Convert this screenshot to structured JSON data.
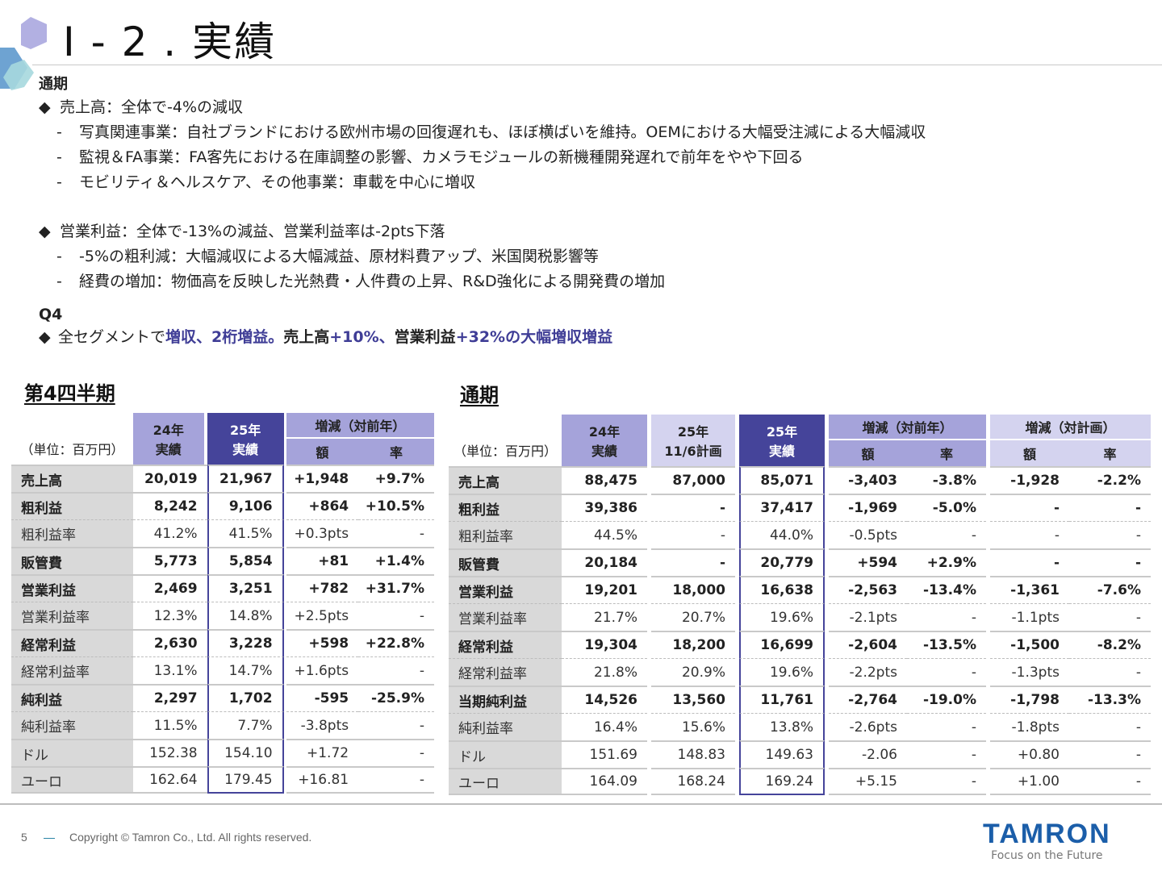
{
  "slide": {
    "title": "Ⅰ - 2 . 実績",
    "page_number": "5",
    "copyright": "Copyright © Tamron Co., Ltd. All rights reserved.",
    "logo_brand": "TAMRON",
    "logo_tagline": "Focus on the Future",
    "colors": {
      "accent": "#3f3d96",
      "header_dark": "#45449a",
      "header_mid": "#a5a3da",
      "header_light": "#d4d3ef",
      "brand_blue": "#1b5ea9"
    }
  },
  "summary": {
    "fullyear_heading": "通期",
    "sales": {
      "bullet": "◆",
      "text": "売上高：全体で-4%の減収",
      "items": [
        "写真関連事業：自社ブランドにおける欧州市場の回復遅れも、ほぼ横ばいを維持。OEMにおける大幅受注減による大幅減収",
        "監視＆FA事業：FA客先における在庫調整の影響、カメラモジュールの新機種開発遅れで前年をやや下回る",
        "モビリティ＆ヘルスケア、その他事業：車載を中心に増収"
      ]
    },
    "op_income": {
      "bullet": "◆",
      "text": "営業利益：全体で-13%の減益、営業利益率は-2pts下落",
      "items": [
        "-5%の粗利減：大幅減収による大幅減益、原材料費アップ、米国関税影響等",
        "経費の増加：物価高を反映した光熱費・人件費の上昇、R&D強化による開発費の増加"
      ]
    },
    "q4_heading": "Q4",
    "q4": {
      "bullet": "◆",
      "p1": "全セグメントで",
      "p2": "増収、2桁増益。",
      "p3": "売上高",
      "p4": "+10%、",
      "p5": "営業利益",
      "p6": "+32%の大幅増収増益"
    },
    "dash": "-"
  },
  "q4_table": {
    "title": "第4四半期",
    "unit": "（単位：百万円）",
    "headers": {
      "y24": "24年",
      "y24b": "実績",
      "y25": "25年",
      "y25b": "実績",
      "diff": "増減（対前年）",
      "amt": "額",
      "rate": "率"
    },
    "rows": [
      {
        "label": "売上高",
        "y24": "20,019",
        "y25": "21,967",
        "amt": "+1,948",
        "rate": "+9.7%"
      },
      {
        "label": "粗利益",
        "y24": "8,242",
        "y25": "9,106",
        "amt": "+864",
        "rate": "+10.5%"
      },
      {
        "label": "粗利益率",
        "y24": "41.2%",
        "y25": "41.5%",
        "amt": "+0.3pts",
        "rate": "-"
      },
      {
        "label": "販管費",
        "y24": "5,773",
        "y25": "5,854",
        "amt": "+81",
        "rate": "+1.4%"
      },
      {
        "label": "営業利益",
        "y24": "2,469",
        "y25": "3,251",
        "amt": "+782",
        "rate": "+31.7%"
      },
      {
        "label": "営業利益率",
        "y24": "12.3%",
        "y25": "14.8%",
        "amt": "+2.5pts",
        "rate": "-"
      },
      {
        "label": "経常利益",
        "y24": "2,630",
        "y25": "3,228",
        "amt": "+598",
        "rate": "+22.8%"
      },
      {
        "label": "経常利益率",
        "y24": "13.1%",
        "y25": "14.7%",
        "amt": "+1.6pts",
        "rate": "-"
      },
      {
        "label": "純利益",
        "y24": "2,297",
        "y25": "1,702",
        "amt": "-595",
        "rate": "-25.9%"
      },
      {
        "label": "純利益率",
        "y24": "11.5%",
        "y25": "7.7%",
        "amt": "-3.8pts",
        "rate": "-"
      },
      {
        "label": "ドル",
        "y24": "152.38",
        "y25": "154.10",
        "amt": "+1.72",
        "rate": "-"
      },
      {
        "label": "ユーロ",
        "y24": "162.64",
        "y25": "179.45",
        "amt": "+16.81",
        "rate": "-"
      }
    ]
  },
  "fy_table": {
    "title": "通期",
    "unit": "（単位：百万円）",
    "headers": {
      "y24": "24年",
      "y24b": "実績",
      "plan": "25年",
      "planb": "11/6計画",
      "y25": "25年",
      "y25b": "実績",
      "diff_yoy": "増減（対前年）",
      "diff_plan": "増減（対計画）",
      "amt": "額",
      "rate": "率"
    },
    "rows": [
      {
        "label": "売上高",
        "y24": "88,475",
        "plan": "87,000",
        "y25": "85,071",
        "yoy_amt": "-3,403",
        "yoy_rate": "-3.8%",
        "plan_amt": "-1,928",
        "plan_rate": "-2.2%"
      },
      {
        "label": "粗利益",
        "y24": "39,386",
        "plan": "-",
        "y25": "37,417",
        "yoy_amt": "-1,969",
        "yoy_rate": "-5.0%",
        "plan_amt": "-",
        "plan_rate": "-"
      },
      {
        "label": "粗利益率",
        "y24": "44.5%",
        "plan": "-",
        "y25": "44.0%",
        "yoy_amt": "-0.5pts",
        "yoy_rate": "-",
        "plan_amt": "-",
        "plan_rate": "-"
      },
      {
        "label": "販管費",
        "y24": "20,184",
        "plan": "-",
        "y25": "20,779",
        "yoy_amt": "+594",
        "yoy_rate": "+2.9%",
        "plan_amt": "-",
        "plan_rate": "-"
      },
      {
        "label": "営業利益",
        "y24": "19,201",
        "plan": "18,000",
        "y25": "16,638",
        "yoy_amt": "-2,563",
        "yoy_rate": "-13.4%",
        "plan_amt": "-1,361",
        "plan_rate": "-7.6%"
      },
      {
        "label": "営業利益率",
        "y24": "21.7%",
        "plan": "20.7%",
        "y25": "19.6%",
        "yoy_amt": "-2.1pts",
        "yoy_rate": "-",
        "plan_amt": "-1.1pts",
        "plan_rate": "-"
      },
      {
        "label": "経常利益",
        "y24": "19,304",
        "plan": "18,200",
        "y25": "16,699",
        "yoy_amt": "-2,604",
        "yoy_rate": "-13.5%",
        "plan_amt": "-1,500",
        "plan_rate": "-8.2%"
      },
      {
        "label": "経常利益率",
        "y24": "21.8%",
        "plan": "20.9%",
        "y25": "19.6%",
        "yoy_amt": "-2.2pts",
        "yoy_rate": "-",
        "plan_amt": "-1.3pts",
        "plan_rate": "-"
      },
      {
        "label": "当期純利益",
        "y24": "14,526",
        "plan": "13,560",
        "y25": "11,761",
        "yoy_amt": "-2,764",
        "yoy_rate": "-19.0%",
        "plan_amt": "-1,798",
        "plan_rate": "-13.3%"
      },
      {
        "label": "純利益率",
        "y24": "16.4%",
        "plan": "15.6%",
        "y25": "13.8%",
        "yoy_amt": "-2.6pts",
        "yoy_rate": "-",
        "plan_amt": "-1.8pts",
        "plan_rate": "-"
      },
      {
        "label": "ドル",
        "y24": "151.69",
        "plan": "148.83",
        "y25": "149.63",
        "yoy_amt": "-2.06",
        "yoy_rate": "-",
        "plan_amt": "+0.80",
        "plan_rate": "-"
      },
      {
        "label": "ユーロ",
        "y24": "164.09",
        "plan": "168.24",
        "y25": "169.24",
        "yoy_amt": "+5.15",
        "yoy_rate": "-",
        "plan_amt": "+1.00",
        "plan_rate": "-"
      }
    ]
  }
}
